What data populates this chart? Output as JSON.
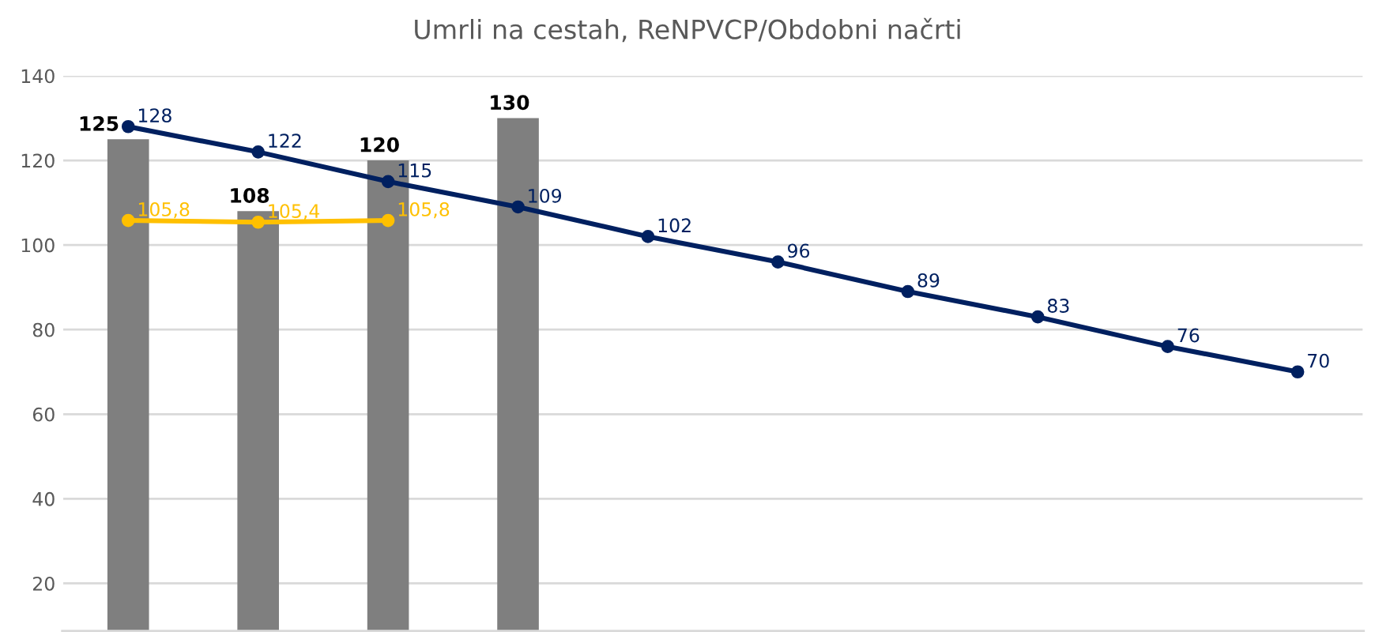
{
  "chart_data": {
    "type": "bar",
    "title": "Umrli na cestah, ReNPVCP/Obdobni načrti",
    "categories": [
      null,
      null,
      null,
      null,
      null,
      null,
      null,
      null,
      null,
      null
    ],
    "series": [
      {
        "color": "#7f7f7f",
        "values": [
          125,
          108,
          120,
          130,
          null,
          null,
          null,
          null,
          null,
          null
        ],
        "value_labels": [
          "125",
          "108",
          "120",
          "130",
          null,
          null,
          null,
          null,
          null,
          null
        ]
      },
      {
        "type": "line",
        "color": "#002060",
        "values": [
          128,
          122,
          115,
          109,
          102,
          96,
          89,
          83,
          76,
          70
        ],
        "value_labels": [
          "128",
          "122",
          "115",
          "109",
          "102",
          "96",
          "89",
          "83",
          "76",
          "70"
        ]
      },
      {
        "type": "line",
        "color": "#ffc000",
        "values": [
          105.8,
          105.4,
          105.8,
          null,
          null,
          null,
          null,
          null,
          null,
          null
        ],
        "value_labels": [
          "105,8",
          "105,4",
          "105,8",
          null,
          null,
          null,
          null,
          null,
          null,
          null
        ]
      }
    ],
    "ylim": [
      8.5,
      140
    ],
    "yticks": [
      20,
      40,
      60,
      80,
      100,
      120,
      140
    ],
    "grid": "y",
    "tick_labels": "y",
    "marker": "circle"
  }
}
